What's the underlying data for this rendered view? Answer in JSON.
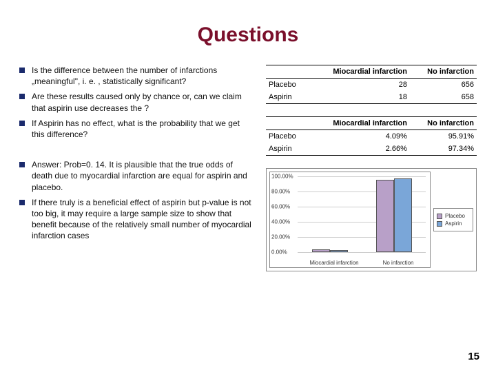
{
  "title": {
    "text": "Questions",
    "color": "#7a0f2b",
    "fontsize": 30
  },
  "bullets_block1": [
    "Is the difference between the number of infarctions „meaningful\", i. e. , statistically significant?",
    "Are these results caused only by chance or, can we claim that aspirin use decreases the ?",
    "If Aspirin has no effect, what is the probability that we get this difference?"
  ],
  "bullets_block2": [
    "Answer: Prob=0. 14. It is plausible that the true odds of death due to myocardial infarction are equal for aspirin and placebo.",
    "If there truly is a beneficial effect of aspirin but p-value is not too big, it may require a large sample size to show that benefit because of the relatively small number of myocardial infarction cases"
  ],
  "bullet_marker_color": "#1a2a6c",
  "table1": {
    "columns": [
      "",
      "Miocardial infarction",
      "No infarction"
    ],
    "rows": [
      [
        "Placebo",
        "28",
        "656"
      ],
      [
        "Aspirin",
        "18",
        "658"
      ]
    ]
  },
  "table2": {
    "columns": [
      "",
      "Miocardial infarction",
      "No infarction"
    ],
    "rows": [
      [
        "Placebo",
        "4.09%",
        "95.91%"
      ],
      [
        "Aspirin",
        "2.66%",
        "97.34%"
      ]
    ]
  },
  "chart": {
    "type": "bar",
    "categories": [
      "Miocardial infarction",
      "No infarction"
    ],
    "series": [
      {
        "name": "Placebo",
        "color": "#b8a0c8",
        "values": [
          4.09,
          95.91
        ]
      },
      {
        "name": "Aspirin",
        "color": "#7aa6d8",
        "values": [
          2.66,
          97.34
        ]
      }
    ],
    "ylim": [
      0,
      100
    ],
    "yticks": [
      "0.00%",
      "20.00%",
      "40.00%",
      "60.00%",
      "80.00%",
      "100.00%"
    ],
    "grid_color": "#cccccc",
    "border_color": "#888888",
    "label_fontsize": 8
  },
  "page_number": "15"
}
